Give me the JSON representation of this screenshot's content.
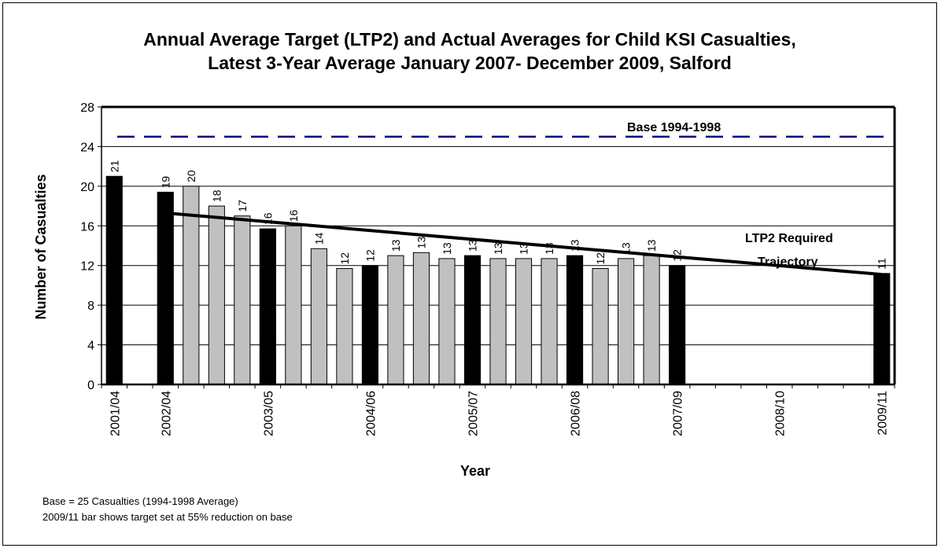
{
  "chart_data": {
    "type": "bar",
    "title_lines": [
      "Annual Average Target (LTP2) and Actual Averages for Child KSI Casualties,",
      "Latest 3-Year Average January 2007- December 2009, Salford"
    ],
    "xlabel": "Year",
    "ylabel": "Number of Casualties",
    "ylim": [
      0,
      28
    ],
    "yticks": [
      0,
      4,
      8,
      12,
      16,
      20,
      24,
      28
    ],
    "grid": true,
    "x_tick_labels": [
      "2001/04",
      "2002/04",
      "2003/05",
      "2004/06",
      "2005/07",
      "2006/08",
      "2007/09",
      "2008/10",
      "2009/11"
    ],
    "bars": [
      {
        "label": "2001/04",
        "value": 21,
        "data_label": "21",
        "style": "black"
      },
      {
        "label": "",
        "value": 0,
        "data_label": "",
        "style": "none"
      },
      {
        "label": "2002/04",
        "value": 19.4,
        "data_label": "19",
        "style": "black"
      },
      {
        "label": "",
        "value": 20,
        "data_label": "20",
        "style": "grey"
      },
      {
        "label": "",
        "value": 18,
        "data_label": "18",
        "style": "grey"
      },
      {
        "label": "",
        "value": 17,
        "data_label": "17",
        "style": "grey"
      },
      {
        "label": "2003/05",
        "value": 15.7,
        "data_label": "16",
        "style": "black"
      },
      {
        "label": "",
        "value": 16,
        "data_label": "16",
        "style": "grey"
      },
      {
        "label": "",
        "value": 13.7,
        "data_label": "14",
        "style": "grey"
      },
      {
        "label": "",
        "value": 11.7,
        "data_label": "12",
        "style": "grey"
      },
      {
        "label": "2004/06",
        "value": 12,
        "data_label": "12",
        "style": "black"
      },
      {
        "label": "",
        "value": 13,
        "data_label": "13",
        "style": "grey"
      },
      {
        "label": "",
        "value": 13.3,
        "data_label": "13",
        "style": "grey"
      },
      {
        "label": "",
        "value": 12.7,
        "data_label": "13",
        "style": "grey"
      },
      {
        "label": "2005/07",
        "value": 13,
        "data_label": "13",
        "style": "black"
      },
      {
        "label": "",
        "value": 12.7,
        "data_label": "13",
        "style": "grey"
      },
      {
        "label": "",
        "value": 12.7,
        "data_label": "13",
        "style": "grey"
      },
      {
        "label": "",
        "value": 12.7,
        "data_label": "13",
        "style": "grey"
      },
      {
        "label": "2006/08",
        "value": 13,
        "data_label": "13",
        "style": "black"
      },
      {
        "label": "",
        "value": 11.7,
        "data_label": "12",
        "style": "grey"
      },
      {
        "label": "",
        "value": 12.7,
        "data_label": "13",
        "style": "grey"
      },
      {
        "label": "",
        "value": 13,
        "data_label": "13",
        "style": "grey"
      },
      {
        "label": "2007/09",
        "value": 12,
        "data_label": "12",
        "style": "black"
      },
      {
        "label": "",
        "value": 0,
        "data_label": "",
        "style": "none"
      },
      {
        "label": "",
        "value": 0,
        "data_label": "",
        "style": "none"
      },
      {
        "label": "",
        "value": 0,
        "data_label": "",
        "style": "none"
      },
      {
        "label": "2008/10",
        "value": 0,
        "data_label": "",
        "style": "none"
      },
      {
        "label": "",
        "value": 0,
        "data_label": "",
        "style": "none"
      },
      {
        "label": "",
        "value": 0,
        "data_label": "",
        "style": "none"
      },
      {
        "label": "",
        "value": 0,
        "data_label": "",
        "style": "none"
      },
      {
        "label": "2009/11",
        "value": 11.2,
        "data_label": "11",
        "style": "black"
      }
    ],
    "base_line": {
      "value": 25,
      "label": "Base 1994-1998",
      "color": "#000080",
      "style": "dashed"
    },
    "trajectory": {
      "label_lines": [
        "LTP2 Required",
        "Trajectory"
      ],
      "start": {
        "bar_index": 2,
        "value": 17.3
      },
      "end": {
        "bar_index": 30,
        "value": 11.1
      }
    },
    "colors": {
      "black": "#000000",
      "grey": "#c0c0c0"
    }
  },
  "notes": [
    "Base = 25 Casualties (1994-1998 Average)",
    "2009/11 bar shows target set at 55% reduction on base"
  ]
}
